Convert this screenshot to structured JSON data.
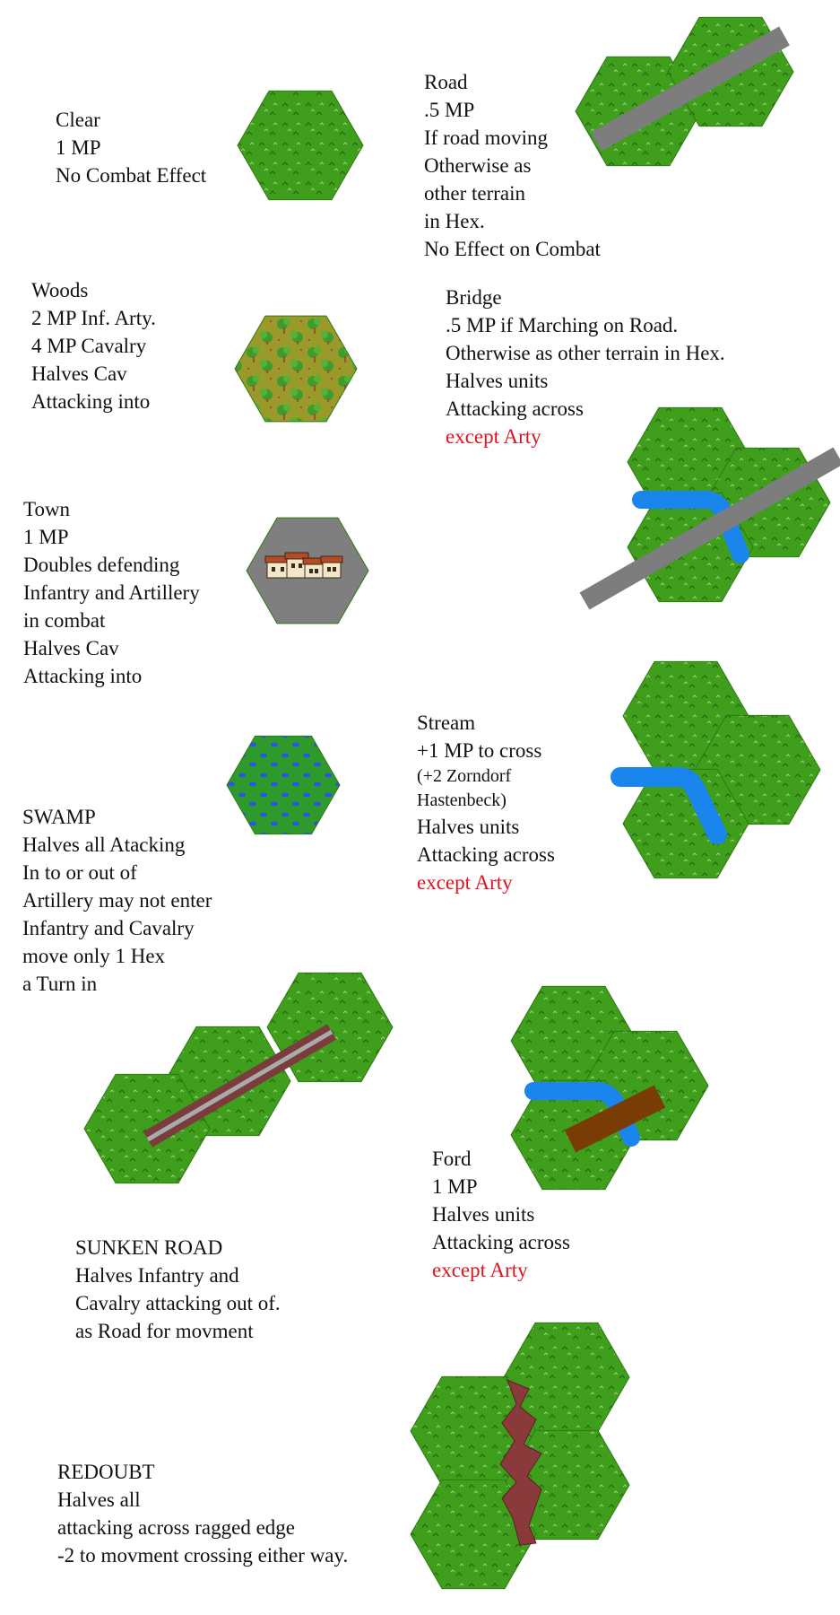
{
  "colors": {
    "grass": "#3f9e1c",
    "grass_dark": "#2f7d12",
    "road": "#7d7d7d",
    "water": "#1a85ec",
    "town_bg": "#7f7f7f",
    "woods": "#9a9a2a",
    "swamp": "#2f9a2c",
    "swamp_dot": "#2a55e0",
    "sunken": "#7a3c3c",
    "ford": "#7a3c05",
    "redoubt": "#8a3a3a",
    "red_text": "#e0141e"
  },
  "terrain": [
    {
      "id": "clear",
      "lines": [
        "Clear",
        "1 MP",
        "No Combat Effect"
      ],
      "icon": "clear-hex-icon"
    },
    {
      "id": "road",
      "lines": [
        "Road",
        ".5 MP",
        "If road moving",
        "Otherwise as",
        "other terrain",
        "in Hex.",
        "No Effect on Combat"
      ],
      "icon": "road-hex-icon"
    },
    {
      "id": "woods",
      "lines": [
        "Woods",
        "2 MP Inf. Arty.",
        "4 MP Cavalry",
        "Halves Cav",
        "Attacking into"
      ],
      "icon": "woods-hex-icon"
    },
    {
      "id": "bridge",
      "lines": [
        "Bridge",
        ".5 MP if Marching on Road.",
        "Otherwise as other terrain in Hex.",
        "Halves units",
        "Attacking across"
      ],
      "red": "except Arty",
      "icon": "bridge-hex-icon"
    },
    {
      "id": "town",
      "lines": [
        "Town",
        "1 MP",
        "Doubles defending",
        "Infantry and Artillery",
        "in combat",
        "Halves Cav",
        "Attacking into"
      ],
      "icon": "town-hex-icon"
    },
    {
      "id": "stream",
      "lines": [
        "Stream",
        "+1  MP to cross",
        "(+2 Zorndorf",
        "Hastenbeck)",
        "Halves units",
        "Attacking across"
      ],
      "red": "except Arty",
      "icon": "stream-hex-icon"
    },
    {
      "id": "swamp",
      "lines": [
        "SWAMP",
        "Halves all Atacking",
        "In to or out of",
        "Artillery may not enter",
        "Infantry and Cavalry",
        "move only 1 Hex",
        "a Turn in"
      ],
      "icon": "swamp-hex-icon"
    },
    {
      "id": "sunken",
      "lines": [
        "SUNKEN ROAD",
        "Halves Infantry and",
        "Cavalry attacking out of.",
        "as Road for movment"
      ],
      "icon": "sunken-road-hex-icon"
    },
    {
      "id": "ford",
      "lines": [
        "Ford",
        "1 MP",
        "Halves units",
        "Attacking across"
      ],
      "red": "except Arty",
      "icon": "ford-hex-icon"
    },
    {
      "id": "redoubt",
      "lines": [
        "REDOUBT",
        "Halves  all",
        "attacking across ragged edge",
        "-2 to movment crossing either way."
      ],
      "icon": "redoubt-hex-icon"
    }
  ]
}
